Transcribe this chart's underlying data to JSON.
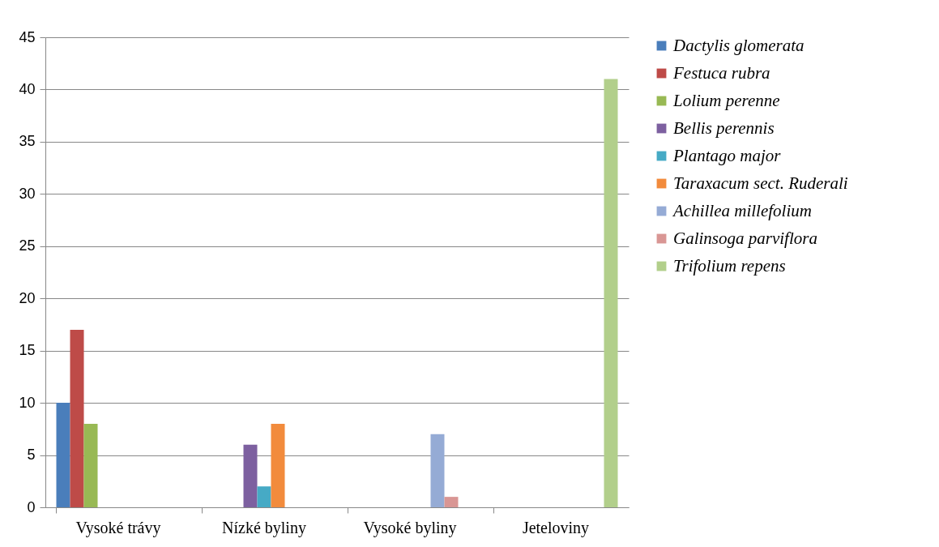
{
  "chart_data": {
    "type": "bar",
    "categories": [
      "Vysoké trávy",
      "Nízké byliny",
      "Vysoké byliny",
      "Jeteloviny"
    ],
    "series": [
      {
        "name": "Dactylis glomerata",
        "color": "#4a7ebb",
        "values": [
          10,
          null,
          null,
          null
        ]
      },
      {
        "name": "Festuca rubra",
        "color": "#be4b48",
        "values": [
          17,
          null,
          null,
          null
        ]
      },
      {
        "name": "Lolium perenne",
        "color": "#98b954",
        "values": [
          8,
          null,
          null,
          null
        ]
      },
      {
        "name": "Bellis perennis",
        "color": "#7d60a0",
        "values": [
          null,
          6,
          null,
          null
        ]
      },
      {
        "name": "Plantago major",
        "color": "#46aac5",
        "values": [
          null,
          2,
          null,
          null
        ]
      },
      {
        "name": "Taraxacum sect. Ruderali",
        "color": "#f28b3c",
        "values": [
          null,
          8,
          null,
          null
        ]
      },
      {
        "name": "Achillea millefolium",
        "color": "#95abd5",
        "values": [
          null,
          null,
          7,
          null
        ]
      },
      {
        "name": "Galinsoga parviflora",
        "color": "#d99694",
        "values": [
          null,
          null,
          1,
          null
        ]
      },
      {
        "name": "Trifolium repens",
        "color": "#b2cf8b",
        "values": [
          null,
          null,
          null,
          41
        ]
      }
    ],
    "ylim": [
      0,
      45
    ],
    "yticks": [
      0,
      5,
      10,
      15,
      20,
      25,
      30,
      35,
      40,
      45
    ],
    "grid": "y",
    "legend": "right"
  }
}
